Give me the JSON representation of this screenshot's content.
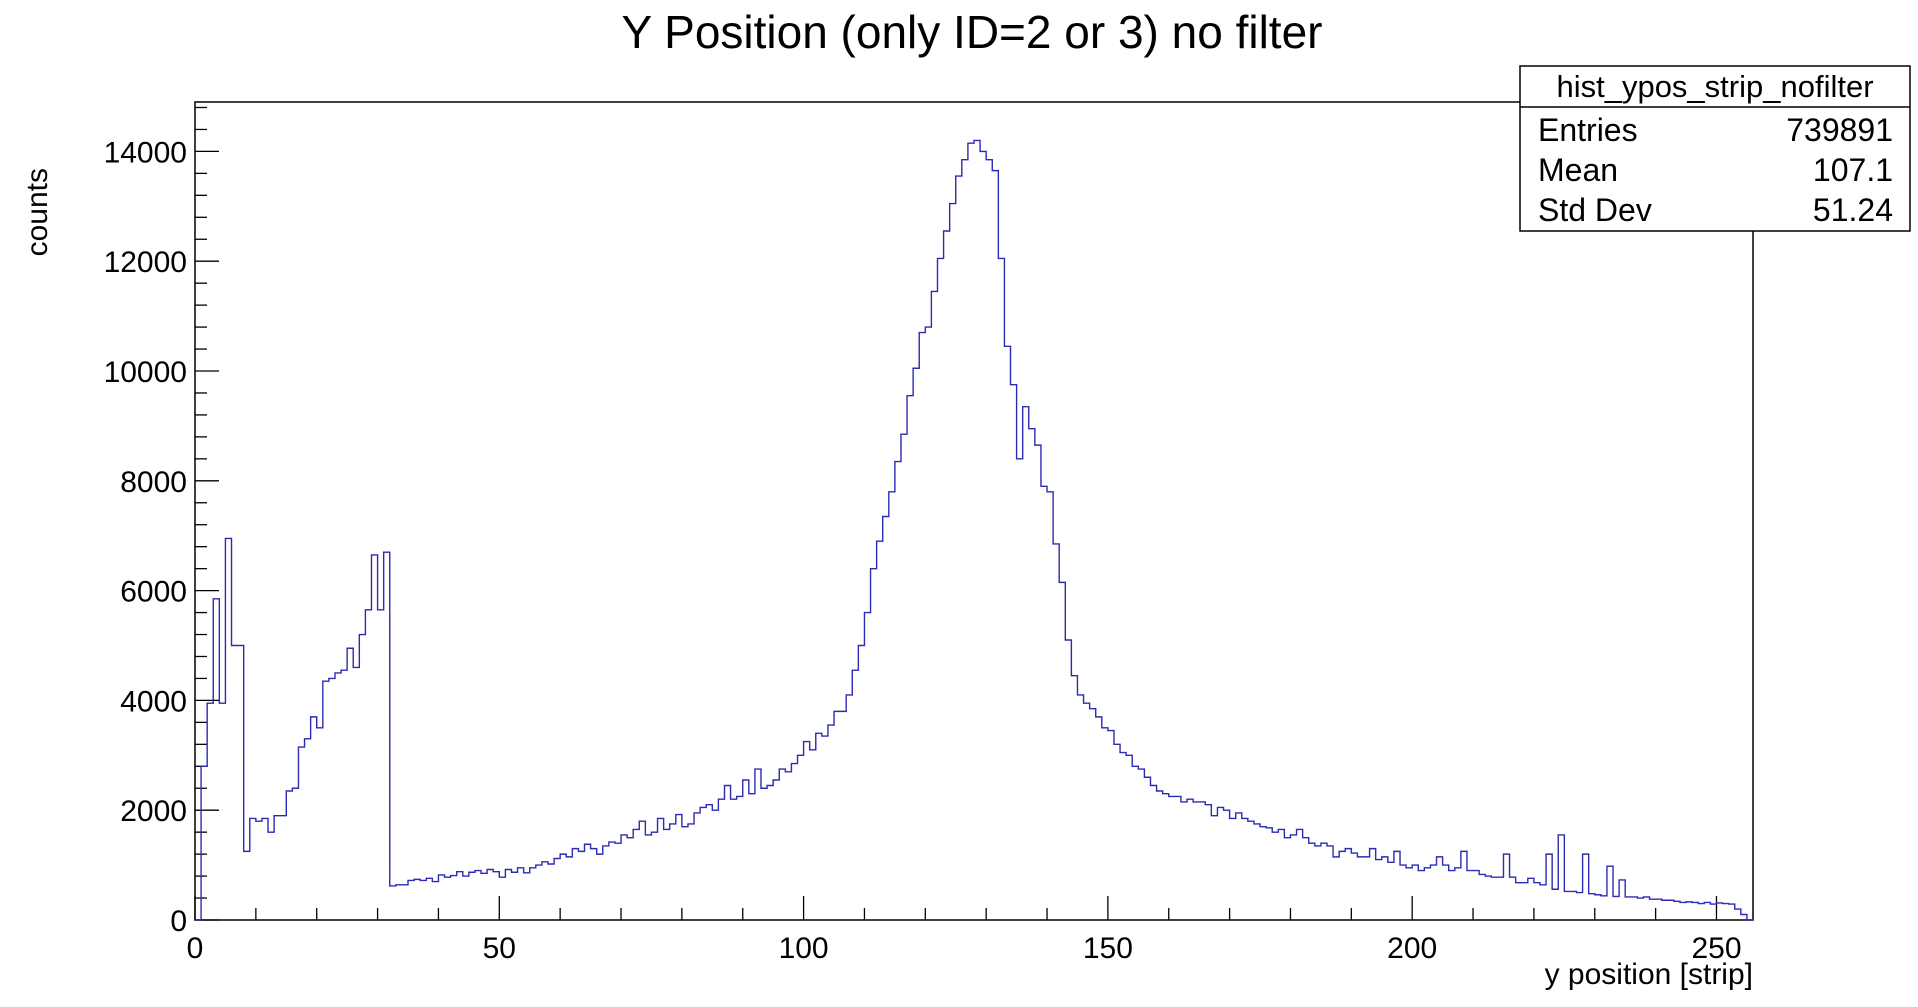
{
  "chart_data": {
    "type": "histogram",
    "title": "Y Position (only ID=2 or 3) no filter",
    "xlabel": "y position [strip]",
    "ylabel": "counts",
    "xlim": [
      0,
      256
    ],
    "ylim": [
      0,
      14900
    ],
    "x_ticks": [
      0,
      50,
      100,
      150,
      200,
      250
    ],
    "y_ticks": [
      0,
      2000,
      4000,
      6000,
      8000,
      10000,
      12000,
      14000
    ],
    "bin_width": 1,
    "line_color": "#2b2bb3",
    "grid": false,
    "legend": "none",
    "stats": {
      "name": "hist_ypos_strip_nofilter",
      "rows": [
        {
          "label": "Entries",
          "value": "739891"
        },
        {
          "label": "Mean",
          "value": "107.1"
        },
        {
          "label": "Std Dev",
          "value": "51.24"
        }
      ]
    },
    "bin_contents": [
      0,
      2800,
      3950,
      5850,
      3950,
      6950,
      5000,
      5000,
      1250,
      1850,
      1800,
      1850,
      1600,
      1900,
      1900,
      2350,
      2400,
      3150,
      3300,
      3700,
      3500,
      4350,
      4400,
      4500,
      4550,
      4950,
      4600,
      5200,
      5650,
      6650,
      5650,
      6700,
      620,
      640,
      640,
      720,
      740,
      720,
      760,
      700,
      820,
      780,
      810,
      880,
      800,
      870,
      900,
      850,
      920,
      880,
      780,
      920,
      870,
      950,
      860,
      950,
      1000,
      1060,
      1020,
      1120,
      1200,
      1150,
      1300,
      1250,
      1380,
      1300,
      1200,
      1350,
      1420,
      1400,
      1550,
      1500,
      1650,
      1800,
      1550,
      1600,
      1850,
      1650,
      1750,
      1920,
      1700,
      1750,
      1950,
      2050,
      2100,
      2000,
      2200,
      2450,
      2200,
      2250,
      2550,
      2300,
      2750,
      2400,
      2450,
      2550,
      2750,
      2700,
      2850,
      3000,
      3250,
      3100,
      3400,
      3350,
      3550,
      3800,
      3800,
      4100,
      4550,
      5000,
      5600,
      6400,
      6900,
      7350,
      7800,
      8350,
      8850,
      9550,
      10050,
      10700,
      10800,
      11450,
      12050,
      12550,
      13050,
      13550,
      13850,
      14150,
      14200,
      14000,
      13850,
      13650,
      12050,
      10450,
      9750,
      8400,
      9350,
      8950,
      8650,
      7900,
      7800,
      6850,
      6150,
      5100,
      4450,
      4100,
      3950,
      3850,
      3700,
      3500,
      3450,
      3200,
      3050,
      3000,
      2800,
      2750,
      2600,
      2450,
      2350,
      2300,
      2250,
      2250,
      2150,
      2200,
      2150,
      2150,
      2100,
      1900,
      2050,
      2000,
      1850,
      1950,
      1850,
      1800,
      1750,
      1700,
      1680,
      1600,
      1650,
      1500,
      1550,
      1650,
      1500,
      1400,
      1350,
      1400,
      1350,
      1150,
      1250,
      1300,
      1220,
      1150,
      1150,
      1300,
      1100,
      1150,
      1050,
      1250,
      1000,
      950,
      1000,
      900,
      950,
      1000,
      1150,
      1000,
      900,
      950,
      1250,
      900,
      900,
      830,
      800,
      780,
      780,
      1200,
      780,
      680,
      680,
      760,
      680,
      640,
      1200,
      560,
      1550,
      520,
      520,
      500,
      1200,
      480,
      460,
      440,
      980,
      430,
      730,
      420,
      420,
      400,
      420,
      380,
      380,
      360,
      360,
      340,
      320,
      330,
      320,
      300,
      320,
      290,
      310,
      300,
      290,
      200,
      100,
      0
    ]
  }
}
